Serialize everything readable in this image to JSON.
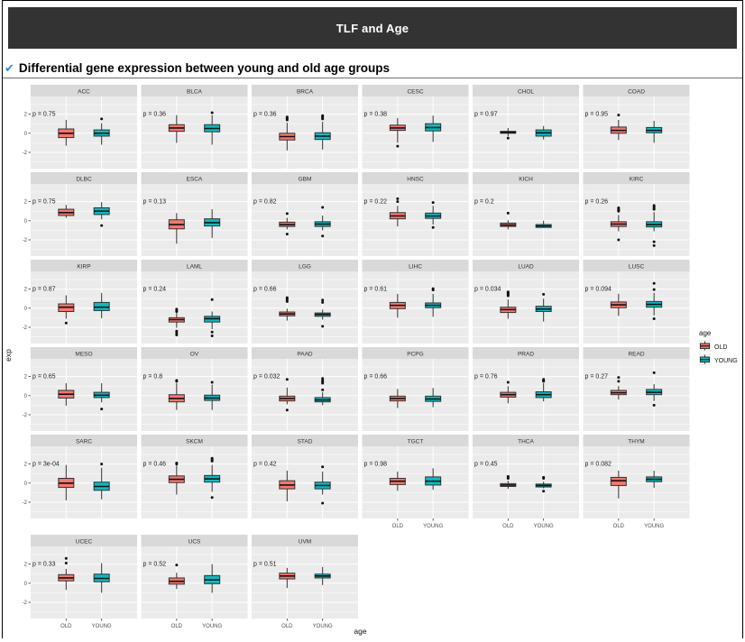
{
  "header": {
    "title": "TLF and Age"
  },
  "subtitle": {
    "check_glyph": "✔",
    "text": "Differential gene expression between young and old age groups"
  },
  "chart_data": {
    "type": "boxplot-facets",
    "title": "TLF and Age",
    "xlabel": "age",
    "ylabel": "exp",
    "yticks": [
      2,
      0,
      -2
    ],
    "ylim": [
      -3.7,
      3.85
    ],
    "groups": [
      "OLD",
      "YOUNG"
    ],
    "colors": {
      "OLD": "#F8766D",
      "YOUNG": "#00BFC4"
    },
    "legend": {
      "title": "age",
      "position": "right"
    },
    "style": {
      "panel_bg": "#EBEBEB",
      "strip_bg": "#D9D9D9",
      "grid": "#FFFFFF"
    },
    "ncols": 6,
    "facets": [
      {
        "label": "ACC",
        "p": "p = 0.75",
        "boxes": [
          {
            "lo": -1.3,
            "q1": -0.45,
            "med": 0.0,
            "q3": 0.45,
            "hi": 1.4,
            "out": []
          },
          {
            "lo": -1.2,
            "q1": -0.3,
            "med": 0.0,
            "q3": 0.35,
            "hi": 1.05,
            "out": [
              1.5
            ]
          }
        ]
      },
      {
        "label": "BLCA",
        "p": "p = 0.36",
        "boxes": [
          {
            "lo": -1.0,
            "q1": 0.2,
            "med": 0.55,
            "q3": 0.9,
            "hi": 1.9,
            "out": []
          },
          {
            "lo": -1.2,
            "q1": 0.15,
            "med": 0.5,
            "q3": 0.9,
            "hi": 1.9,
            "out": [
              2.15
            ]
          }
        ]
      },
      {
        "label": "BRCA",
        "p": "p = 0.36",
        "boxes": [
          {
            "lo": -1.8,
            "q1": -0.7,
            "med": -0.35,
            "q3": 0.0,
            "hi": 1.1,
            "out": [
              1.4,
              1.5,
              1.6,
              1.7
            ]
          },
          {
            "lo": -1.7,
            "q1": -0.65,
            "med": -0.3,
            "q3": 0.05,
            "hi": 1.2,
            "out": [
              1.5,
              1.6,
              1.7,
              1.85
            ]
          }
        ]
      },
      {
        "label": "CESC",
        "p": "p = 0.38",
        "boxes": [
          {
            "lo": -1.0,
            "q1": 0.3,
            "med": 0.55,
            "q3": 0.85,
            "hi": 1.6,
            "out": [
              -1.35
            ]
          },
          {
            "lo": -0.9,
            "q1": 0.25,
            "med": 0.6,
            "q3": 1.0,
            "hi": 1.85,
            "out": []
          }
        ]
      },
      {
        "label": "CHOL",
        "p": "p = 0.97",
        "boxes": [
          {
            "lo": -0.3,
            "q1": 0.0,
            "med": 0.1,
            "q3": 0.2,
            "hi": 0.55,
            "out": [
              -0.5
            ]
          },
          {
            "lo": -0.65,
            "q1": -0.3,
            "med": 0.05,
            "q3": 0.35,
            "hi": 0.75,
            "out": []
          }
        ]
      },
      {
        "label": "COAD",
        "p": "p = 0.95",
        "boxes": [
          {
            "lo": -0.7,
            "q1": 0.0,
            "med": 0.3,
            "q3": 0.65,
            "hi": 1.4,
            "out": [
              1.9
            ]
          },
          {
            "lo": -1.0,
            "q1": 0.05,
            "med": 0.3,
            "q3": 0.6,
            "hi": 1.3,
            "out": []
          }
        ]
      },
      {
        "label": "DLBC",
        "p": "p = 0.75",
        "boxes": [
          {
            "lo": 0.3,
            "q1": 0.55,
            "med": 0.85,
            "q3": 1.2,
            "hi": 1.65,
            "out": []
          },
          {
            "lo": 0.15,
            "q1": 0.65,
            "med": 1.0,
            "q3": 1.35,
            "hi": 1.95,
            "out": [
              -0.5
            ]
          }
        ]
      },
      {
        "label": "ESCA",
        "p": "p = 0.13",
        "boxes": [
          {
            "lo": -2.4,
            "q1": -0.85,
            "med": -0.4,
            "q3": 0.1,
            "hi": 0.8,
            "out": []
          },
          {
            "lo": -1.8,
            "q1": -0.55,
            "med": -0.2,
            "q3": 0.2,
            "hi": 1.2,
            "out": []
          }
        ]
      },
      {
        "label": "GBM",
        "p": "p = 0.82",
        "boxes": [
          {
            "lo": -0.9,
            "q1": -0.6,
            "med": -0.4,
            "q3": -0.15,
            "hi": 0.3,
            "out": [
              0.75,
              -1.4
            ]
          },
          {
            "lo": -1.0,
            "q1": -0.6,
            "med": -0.35,
            "q3": -0.1,
            "hi": 0.55,
            "out": [
              1.4,
              -1.6
            ]
          }
        ]
      },
      {
        "label": "HNSC",
        "p": "p = 0.22",
        "boxes": [
          {
            "lo": -0.6,
            "q1": 0.2,
            "med": 0.5,
            "q3": 0.85,
            "hi": 1.55,
            "out": [
              2.0,
              2.3
            ]
          },
          {
            "lo": -0.4,
            "q1": 0.25,
            "med": 0.5,
            "q3": 0.8,
            "hi": 1.55,
            "out": [
              1.9,
              -0.7
            ]
          }
        ]
      },
      {
        "label": "KICH",
        "p": "p = 0.2",
        "boxes": [
          {
            "lo": -0.9,
            "q1": -0.6,
            "med": -0.45,
            "q3": -0.25,
            "hi": 0.05,
            "out": [
              0.8
            ]
          },
          {
            "lo": -0.75,
            "q1": -0.7,
            "med": -0.55,
            "q3": -0.4,
            "hi": 0.0,
            "out": []
          }
        ]
      },
      {
        "label": "KIRC",
        "p": "p = 0.26",
        "boxes": [
          {
            "lo": -1.1,
            "q1": -0.6,
            "med": -0.35,
            "q3": -0.1,
            "hi": 0.6,
            "out": [
              1.0,
              1.1,
              1.2,
              1.35,
              -2.0
            ]
          },
          {
            "lo": -1.1,
            "q1": -0.65,
            "med": -0.4,
            "q3": -0.1,
            "hi": 0.9,
            "out": [
              1.2,
              1.3,
              1.45,
              1.6,
              -2.2,
              -2.6
            ]
          }
        ]
      },
      {
        "label": "KIRP",
        "p": "p = 0.87",
        "boxes": [
          {
            "lo": -1.1,
            "q1": -0.35,
            "med": 0.1,
            "q3": 0.45,
            "hi": 1.35,
            "out": [
              -1.55
            ]
          },
          {
            "lo": -1.05,
            "q1": -0.25,
            "med": 0.1,
            "q3": 0.6,
            "hi": 1.6,
            "out": []
          }
        ]
      },
      {
        "label": "LAML",
        "p": "p = 0.24",
        "boxes": [
          {
            "lo": -2.05,
            "q1": -1.45,
            "med": -1.2,
            "q3": -1.0,
            "hi": -0.5,
            "out": [
              -0.1,
              -0.25,
              -0.35,
              -2.4,
              -2.6,
              -2.8
            ]
          },
          {
            "lo": -2.2,
            "q1": -1.45,
            "med": -1.1,
            "q3": -0.85,
            "hi": -0.35,
            "out": [
              0.9,
              -2.5,
              -2.9
            ]
          }
        ]
      },
      {
        "label": "LGG",
        "p": "p = 0.66",
        "boxes": [
          {
            "lo": -1.3,
            "q1": -0.8,
            "med": -0.6,
            "q3": -0.4,
            "hi": -0.05,
            "out": [
              0.7,
              0.85,
              1.0,
              1.1
            ]
          },
          {
            "lo": -1.2,
            "q1": -0.85,
            "med": -0.65,
            "q3": -0.5,
            "hi": -0.15,
            "out": [
              0.6,
              0.85,
              -1.9
            ]
          }
        ]
      },
      {
        "label": "LIHC",
        "p": "p = 0.61",
        "boxes": [
          {
            "lo": -1.0,
            "q1": -0.05,
            "med": 0.3,
            "q3": 0.6,
            "hi": 1.5,
            "out": []
          },
          {
            "lo": -0.9,
            "q1": 0.05,
            "med": 0.3,
            "q3": 0.55,
            "hi": 1.5,
            "out": [
              1.9,
              2.05
            ]
          }
        ]
      },
      {
        "label": "LUAD",
        "p": "p = 0.034",
        "boxes": [
          {
            "lo": -1.1,
            "q1": -0.45,
            "med": -0.15,
            "q3": 0.1,
            "hi": 0.9,
            "out": [
              1.3,
              1.4,
              1.5,
              1.6,
              1.7
            ]
          },
          {
            "lo": -1.4,
            "q1": -0.35,
            "med": -0.1,
            "q3": 0.2,
            "hi": 1.0,
            "out": [
              1.45
            ]
          }
        ]
      },
      {
        "label": "LUSC",
        "p": "p = 0.094",
        "boxes": [
          {
            "lo": -0.8,
            "q1": 0.05,
            "med": 0.35,
            "q3": 0.65,
            "hi": 1.5,
            "out": []
          },
          {
            "lo": -0.75,
            "q1": 0.1,
            "med": 0.4,
            "q3": 0.7,
            "hi": 1.6,
            "out": [
              2.6,
              1.95,
              -1.1
            ]
          }
        ]
      },
      {
        "label": "MESO",
        "p": "p = 0.65",
        "boxes": [
          {
            "lo": -1.05,
            "q1": -0.25,
            "med": 0.15,
            "q3": 0.55,
            "hi": 1.3,
            "out": []
          },
          {
            "lo": -0.7,
            "q1": -0.2,
            "med": 0.05,
            "q3": 0.35,
            "hi": 1.3,
            "out": [
              -1.4
            ]
          }
        ]
      },
      {
        "label": "OV",
        "p": "p = 0.8",
        "boxes": [
          {
            "lo": -1.5,
            "q1": -0.65,
            "med": -0.3,
            "q3": 0.1,
            "hi": 1.3,
            "out": [
              1.5,
              1.6
            ]
          },
          {
            "lo": -1.5,
            "q1": -0.5,
            "med": -0.25,
            "q3": 0.05,
            "hi": 1.15,
            "out": [
              1.4
            ]
          }
        ]
      },
      {
        "label": "PAAD",
        "p": "p = 0.032",
        "boxes": [
          {
            "lo": -0.9,
            "q1": -0.55,
            "med": -0.3,
            "q3": -0.05,
            "hi": 0.85,
            "out": [
              1.7,
              -1.5
            ]
          },
          {
            "lo": -1.0,
            "q1": -0.65,
            "med": -0.45,
            "q3": -0.2,
            "hi": 0.35,
            "out": [
              1.8,
              1.6,
              1.45,
              1.3,
              0.6
            ]
          }
        ]
      },
      {
        "label": "PCPG",
        "p": "p = 0.66",
        "boxes": [
          {
            "lo": -1.3,
            "q1": -0.55,
            "med": -0.3,
            "q3": -0.05,
            "hi": 0.7,
            "out": []
          },
          {
            "lo": -1.2,
            "q1": -0.6,
            "med": -0.35,
            "q3": -0.05,
            "hi": 0.8,
            "out": []
          }
        ]
      },
      {
        "label": "PRAD",
        "p": "p = 0.76",
        "boxes": [
          {
            "lo": -0.8,
            "q1": -0.15,
            "med": 0.1,
            "q3": 0.35,
            "hi": 1.0,
            "out": [
              1.4
            ]
          },
          {
            "lo": -0.6,
            "q1": -0.2,
            "med": 0.1,
            "q3": 0.4,
            "hi": 1.3,
            "out": [
              1.5,
              1.6,
              1.7
            ]
          }
        ]
      },
      {
        "label": "READ",
        "p": "p = 0.27",
        "boxes": [
          {
            "lo": -0.4,
            "q1": 0.1,
            "med": 0.3,
            "q3": 0.55,
            "hi": 1.0,
            "out": [
              1.5,
              1.9
            ]
          },
          {
            "lo": -0.55,
            "q1": 0.1,
            "med": 0.35,
            "q3": 0.65,
            "hi": 1.2,
            "out": [
              2.4,
              -1.0
            ]
          }
        ]
      },
      {
        "label": "SARC",
        "p": "p = 3e-04",
        "boxes": [
          {
            "lo": -1.8,
            "q1": -0.45,
            "med": 0.0,
            "q3": 0.5,
            "hi": 1.9,
            "out": []
          },
          {
            "lo": -1.7,
            "q1": -0.75,
            "med": -0.35,
            "q3": 0.1,
            "hi": 1.6,
            "out": [
              2.0
            ]
          }
        ]
      },
      {
        "label": "SKCM",
        "p": "p = 0.46",
        "boxes": [
          {
            "lo": -1.2,
            "q1": 0.05,
            "med": 0.4,
            "q3": 0.75,
            "hi": 1.85,
            "out": [
              2.0,
              2.1
            ]
          },
          {
            "lo": -0.9,
            "q1": 0.1,
            "med": 0.45,
            "q3": 0.8,
            "hi": 1.9,
            "out": [
              2.3,
              2.45,
              2.6,
              -1.5
            ]
          }
        ]
      },
      {
        "label": "STAD",
        "p": "p = 0.42",
        "boxes": [
          {
            "lo": -1.9,
            "q1": -0.6,
            "med": -0.2,
            "q3": 0.25,
            "hi": 1.3,
            "out": []
          },
          {
            "lo": -1.2,
            "q1": -0.6,
            "med": -0.25,
            "q3": 0.1,
            "hi": 1.2,
            "out": [
              1.7,
              -2.1
            ]
          }
        ]
      },
      {
        "label": "TGCT",
        "p": "p = 0.98",
        "boxes": [
          {
            "lo": -0.8,
            "q1": -0.15,
            "med": 0.2,
            "q3": 0.5,
            "hi": 1.2,
            "out": []
          },
          {
            "lo": -0.7,
            "q1": -0.2,
            "med": 0.2,
            "q3": 0.65,
            "hi": 1.55,
            "out": []
          }
        ]
      },
      {
        "label": "THCA",
        "p": "p = 0.45",
        "boxes": [
          {
            "lo": -0.6,
            "q1": -0.35,
            "med": -0.2,
            "q3": -0.05,
            "hi": 0.25,
            "out": [
              0.5,
              0.6,
              0.7
            ]
          },
          {
            "lo": -0.55,
            "q1": -0.4,
            "med": -0.25,
            "q3": -0.1,
            "hi": 0.15,
            "out": [
              0.5,
              0.6,
              -0.85
            ]
          }
        ]
      },
      {
        "label": "THYM",
        "p": "p = 0.082",
        "boxes": [
          {
            "lo": -1.6,
            "q1": -0.25,
            "med": 0.25,
            "q3": 0.6,
            "hi": 1.3,
            "out": []
          },
          {
            "lo": -0.5,
            "q1": 0.15,
            "med": 0.4,
            "q3": 0.65,
            "hi": 1.3,
            "out": []
          }
        ]
      },
      {
        "label": "UCEC",
        "p": "p = 0.33",
        "boxes": [
          {
            "lo": -0.7,
            "q1": 0.25,
            "med": 0.55,
            "q3": 0.9,
            "hi": 1.5,
            "out": [
              2.1,
              2.6
            ]
          },
          {
            "lo": -1.0,
            "q1": 0.15,
            "med": 0.5,
            "q3": 0.95,
            "hi": 2.1,
            "out": []
          }
        ]
      },
      {
        "label": "UCS",
        "p": "p = 0.52",
        "boxes": [
          {
            "lo": -0.6,
            "q1": -0.1,
            "med": 0.2,
            "q3": 0.55,
            "hi": 1.1,
            "out": [
              1.9
            ]
          },
          {
            "lo": -1.0,
            "q1": -0.05,
            "med": 0.35,
            "q3": 0.8,
            "hi": 2.0,
            "out": []
          }
        ]
      },
      {
        "label": "UVM",
        "p": "p = 0.51",
        "boxes": [
          {
            "lo": -0.5,
            "q1": 0.45,
            "med": 0.75,
            "q3": 1.05,
            "hi": 1.6,
            "out": []
          },
          {
            "lo": -0.2,
            "q1": 0.55,
            "med": 0.75,
            "q3": 0.95,
            "hi": 1.7,
            "out": []
          }
        ]
      }
    ]
  }
}
